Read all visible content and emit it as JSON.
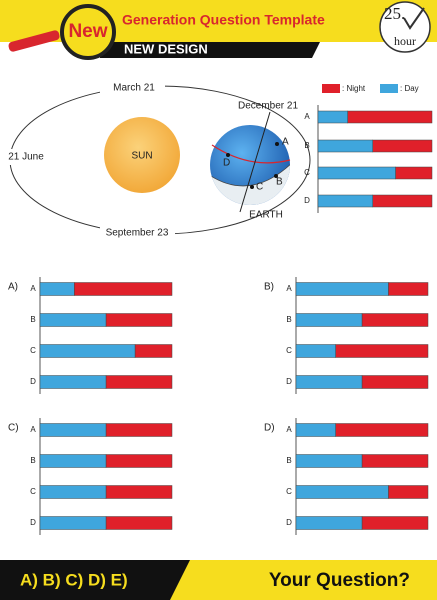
{
  "header": {
    "badge": "New",
    "title": "Generation Question Template",
    "subtitle": "NEW DESIGN",
    "logo_number": "25.",
    "logo_word": "hour"
  },
  "diagram": {
    "dates": [
      "March 21",
      "December 21",
      "21 June",
      "September 23"
    ],
    "sun": "SUN",
    "earth": "EARTH",
    "points": [
      "A",
      "B",
      "C",
      "D"
    ]
  },
  "legend": {
    "night": ": Night",
    "day": ": Day",
    "night_color": "#e0202a",
    "day_color": "#3fa6dd"
  },
  "key": {
    "rows": [
      "A",
      "B",
      "C",
      "D"
    ],
    "day": [
      26,
      48,
      68,
      48
    ]
  },
  "options": [
    {
      "label": "A)",
      "rows": [
        "A",
        "B",
        "C",
        "D"
      ],
      "day": [
        26,
        50,
        72,
        50
      ]
    },
    {
      "label": "B)",
      "rows": [
        "A",
        "B",
        "C",
        "D"
      ],
      "day": [
        70,
        50,
        30,
        50
      ]
    },
    {
      "label": "C)",
      "rows": [
        "A",
        "B",
        "C",
        "D"
      ],
      "day": [
        50,
        50,
        50,
        50
      ]
    },
    {
      "label": "D)",
      "rows": [
        "A",
        "B",
        "C",
        "D"
      ],
      "day": [
        30,
        50,
        70,
        50
      ]
    }
  ],
  "footer": {
    "choices": "A) B) C) D) E)",
    "prompt": "Your Question?"
  }
}
